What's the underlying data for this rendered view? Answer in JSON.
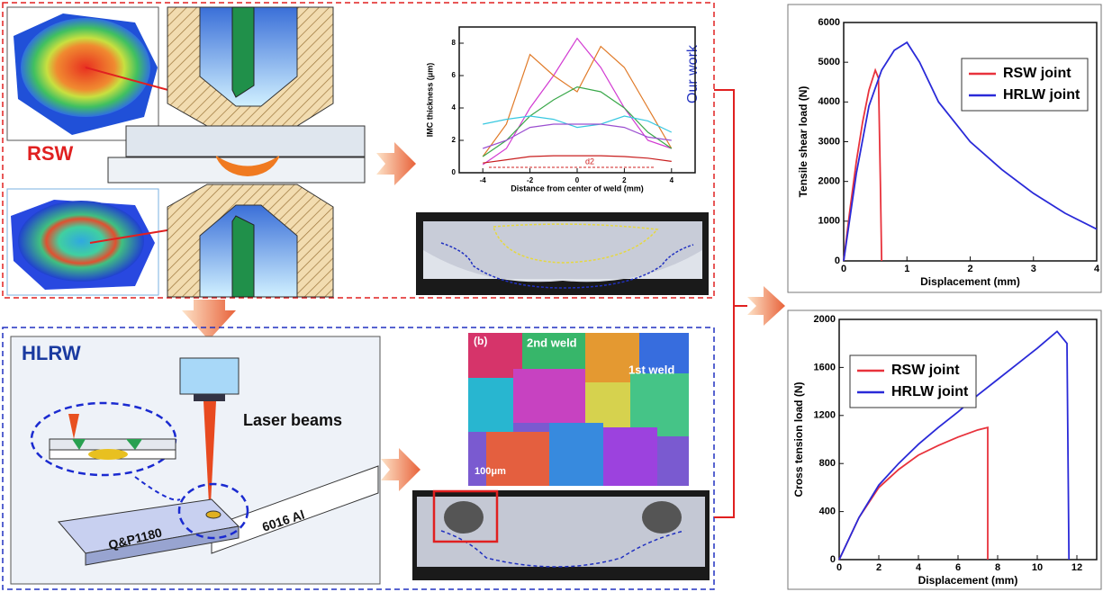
{
  "labels": {
    "rsw": "RSW",
    "hlrw": "HLRW",
    "laser": "Laser beams",
    "al": "6016 Al",
    "steel": "Q&P1180",
    "panel_b": "(b)",
    "weld2": "2nd weld",
    "weld1": "1st weld",
    "scale": "100μm"
  },
  "chart_data": [
    {
      "type": "line",
      "xlabel": "Distance from center of weld (mm)",
      "ylabel": "IMC thickness (μm)",
      "annotations": [
        "Our work",
        "d2"
      ],
      "x": [
        -4,
        -3,
        -2,
        -1,
        0,
        1,
        2,
        3,
        4
      ],
      "series": [
        {
          "color": "#d23bd2",
          "values": [
            0.5,
            1.5,
            4,
            6,
            8.3,
            6.5,
            4,
            2,
            1.5
          ]
        },
        {
          "color": "#e07a28",
          "values": [
            1,
            3,
            7.3,
            6,
            5,
            7.8,
            6.5,
            4,
            1.5
          ]
        },
        {
          "color": "#3aa84a",
          "values": [
            1,
            2,
            3.5,
            4.5,
            5.3,
            5,
            4,
            2.5,
            1.5
          ]
        },
        {
          "color": "#38c8e0",
          "values": [
            3,
            3.3,
            3.5,
            3.3,
            2.8,
            3,
            3.5,
            3.2,
            2.5
          ]
        },
        {
          "color": "#9b4fd0",
          "values": [
            1.5,
            2,
            2.8,
            3,
            3,
            3,
            2.8,
            2.2,
            2
          ]
        },
        {
          "color": "#c81e1e",
          "values": [
            0.6,
            0.8,
            1,
            1.05,
            1.05,
            1.05,
            1,
            0.9,
            0.7
          ]
        }
      ],
      "xlim": [
        -5,
        5
      ],
      "ylim": [
        0,
        9
      ],
      "xticks": [
        -4,
        -2,
        0,
        2,
        4
      ],
      "yticks": [
        0,
        2,
        4,
        6,
        8
      ]
    },
    {
      "type": "line",
      "xlabel": "Displacement (mm)",
      "ylabel": "Tensile shear load (N)",
      "legend": "upper right",
      "series": [
        {
          "name": "RSW joint",
          "color": "#e8323c",
          "x": [
            0,
            0.1,
            0.2,
            0.3,
            0.4,
            0.5,
            0.55,
            0.58,
            0.6
          ],
          "values": [
            0,
            1300,
            2500,
            3500,
            4300,
            4800,
            4600,
            2000,
            0
          ]
        },
        {
          "name": "HRLW joint",
          "color": "#2a2ad8",
          "x": [
            0,
            0.2,
            0.4,
            0.6,
            0.8,
            1.0,
            1.2,
            1.5,
            2.0,
            2.5,
            3.0,
            3.5,
            4.0
          ],
          "values": [
            0,
            2200,
            3900,
            4800,
            5300,
            5500,
            5000,
            4000,
            3000,
            2300,
            1700,
            1200,
            800
          ]
        }
      ],
      "xlim": [
        0,
        4
      ],
      "ylim": [
        0,
        6000
      ],
      "xticks": [
        0,
        1,
        2,
        3,
        4
      ],
      "yticks": [
        0,
        1000,
        2000,
        3000,
        4000,
        5000,
        6000
      ]
    },
    {
      "type": "line",
      "xlabel": "Displacement (mm)",
      "ylabel": "Cross tension load (N)",
      "legend": "upper left",
      "series": [
        {
          "name": "RSW joint",
          "color": "#e8323c",
          "x": [
            0,
            1,
            2,
            3,
            4,
            5,
            6,
            7,
            7.5,
            7.5
          ],
          "values": [
            0,
            350,
            600,
            750,
            870,
            950,
            1020,
            1080,
            1100,
            0
          ]
        },
        {
          "name": "HRLW joint",
          "color": "#2a2ad8",
          "x": [
            0,
            1,
            2,
            3,
            4,
            5,
            6,
            7,
            8,
            9,
            10,
            11,
            11.5,
            11.6
          ],
          "values": [
            0,
            350,
            620,
            800,
            960,
            1100,
            1230,
            1370,
            1500,
            1630,
            1760,
            1900,
            1800,
            0
          ]
        }
      ],
      "xlim": [
        0,
        13
      ],
      "ylim": [
        0,
        2000
      ],
      "xticks": [
        0,
        2,
        4,
        6,
        8,
        10,
        12
      ],
      "yticks": [
        0,
        400,
        800,
        1200,
        1600,
        2000
      ]
    }
  ]
}
